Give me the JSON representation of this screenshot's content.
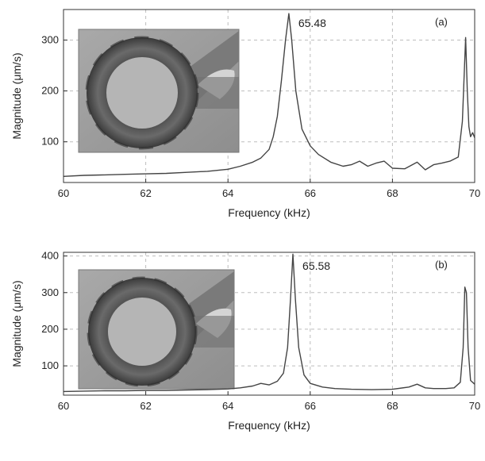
{
  "chart_data": [
    {
      "type": "line",
      "panel_label": "(a)",
      "xlabel": "Frequency (kHz)",
      "ylabel": "Magnitude (μm/s)",
      "xlim": [
        60,
        70
      ],
      "ylim": [
        20,
        360
      ],
      "xticks": [
        60,
        62,
        64,
        66,
        68,
        70
      ],
      "yticks": [
        100,
        200,
        300
      ],
      "grid": true,
      "annotation": "65.48",
      "annotation_x": 65.48,
      "series": [
        {
          "x": [
            60,
            60.5,
            61,
            61.5,
            62,
            62.5,
            63,
            63.5,
            64,
            64.3,
            64.6,
            64.8,
            65.0,
            65.1,
            65.2,
            65.3,
            65.4,
            65.48,
            65.55,
            65.65,
            65.8,
            66.0,
            66.2,
            66.5,
            66.8,
            67.0,
            67.2,
            67.4,
            67.6,
            67.8,
            68.0,
            68.3,
            68.6,
            68.8,
            69.0,
            69.2,
            69.4,
            69.6,
            69.7,
            69.78,
            69.82,
            69.86,
            69.9,
            69.95,
            70.0
          ],
          "values": [
            32,
            34,
            35,
            36,
            37,
            38,
            40,
            42,
            46,
            52,
            60,
            68,
            85,
            110,
            150,
            220,
            300,
            352,
            300,
            200,
            125,
            92,
            75,
            60,
            52,
            55,
            62,
            52,
            58,
            62,
            48,
            47,
            60,
            45,
            55,
            58,
            62,
            70,
            140,
            305,
            200,
            130,
            110,
            118,
            108
          ]
        }
      ]
    },
    {
      "type": "line",
      "panel_label": "(b)",
      "xlabel": "Frequency (kHz)",
      "ylabel": "Magnitude (μm/s)",
      "xlim": [
        60,
        70
      ],
      "ylim": [
        20,
        410
      ],
      "xticks": [
        60,
        62,
        64,
        66,
        68,
        70
      ],
      "yticks": [
        100,
        200,
        300,
        400
      ],
      "grid": true,
      "annotation": "65.58",
      "annotation_x": 65.58,
      "series": [
        {
          "x": [
            60,
            60.5,
            61,
            61.5,
            62,
            62.5,
            63,
            63.5,
            64,
            64.3,
            64.6,
            64.8,
            65.0,
            65.2,
            65.35,
            65.45,
            65.52,
            65.58,
            65.64,
            65.72,
            65.85,
            66.0,
            66.3,
            66.6,
            67.0,
            67.5,
            68.0,
            68.4,
            68.6,
            68.8,
            69.0,
            69.3,
            69.5,
            69.65,
            69.72,
            69.76,
            69.8,
            69.84,
            69.9,
            70.0
          ],
          "values": [
            30,
            31,
            32,
            32,
            33,
            33,
            34,
            35,
            37,
            40,
            45,
            52,
            48,
            58,
            80,
            150,
            280,
            405,
            280,
            150,
            75,
            52,
            42,
            38,
            36,
            35,
            36,
            42,
            50,
            40,
            38,
            38,
            40,
            55,
            150,
            315,
            300,
            150,
            60,
            50
          ]
        }
      ]
    }
  ]
}
